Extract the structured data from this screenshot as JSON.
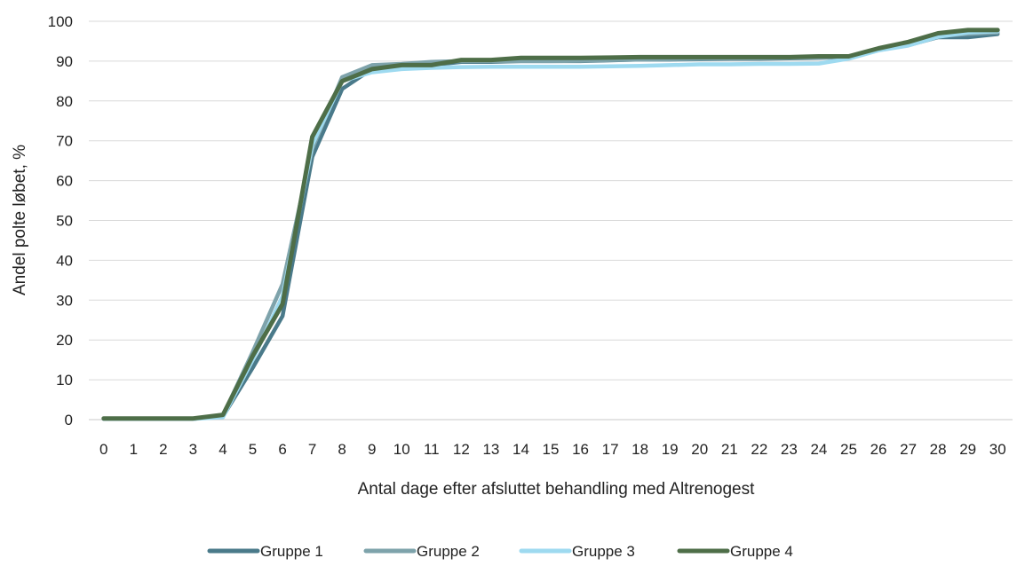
{
  "chart_data": {
    "type": "line",
    "title": "",
    "xlabel": "Antal dage efter afsluttet behandling med Altrenogest",
    "ylabel": "Andel polte løbet, %",
    "xlim": [
      0,
      30
    ],
    "ylim": [
      0,
      100
    ],
    "grid": true,
    "legend_position": "bottom",
    "x": [
      0,
      1,
      2,
      3,
      4,
      5,
      6,
      7,
      8,
      9,
      10,
      11,
      12,
      13,
      14,
      15,
      16,
      17,
      18,
      19,
      20,
      21,
      22,
      23,
      24,
      25,
      26,
      27,
      28,
      29,
      30
    ],
    "x_tick_labels": [
      "0",
      "1",
      "2",
      "3",
      "4",
      "5",
      "6",
      "7",
      "8",
      "9",
      "10",
      "11",
      "12",
      "13",
      "14",
      "15",
      "16",
      "17",
      "18",
      "19",
      "20",
      "21",
      "22",
      "23",
      "24",
      "25",
      "26",
      "27",
      "28",
      "29",
      "30"
    ],
    "y_ticks": [
      0,
      10,
      20,
      30,
      40,
      50,
      60,
      70,
      80,
      90,
      100
    ],
    "series": [
      {
        "name": "Gruppe 1",
        "color": "#4a7a8a",
        "values": [
          0.2,
          0.2,
          0.2,
          0.2,
          0.8,
          13,
          26,
          66,
          83,
          88,
          88.8,
          89,
          89.8,
          89.8,
          90,
          90,
          90,
          90.2,
          90.4,
          90.4,
          90.5,
          90.6,
          90.6,
          90.7,
          90.8,
          91,
          92.8,
          94,
          96,
          96,
          96.8
        ]
      },
      {
        "name": "Gruppe 2",
        "color": "#7ea3ab",
        "values": [
          0.2,
          0.2,
          0.2,
          0.2,
          1.0,
          17,
          34,
          68,
          86,
          89,
          89.3,
          89.8,
          90,
          90,
          90,
          90,
          90.1,
          90.3,
          90.4,
          90.5,
          90.6,
          90.7,
          90.7,
          90.8,
          90.9,
          91,
          92.8,
          94,
          96.3,
          96.8,
          97.2
        ]
      },
      {
        "name": "Gruppe 3",
        "color": "#9edaf0",
        "values": [
          0.2,
          0.2,
          0.2,
          0.2,
          0.6,
          15,
          31,
          69,
          85,
          87.2,
          88,
          88.3,
          88.5,
          88.6,
          88.6,
          88.6,
          88.6,
          88.7,
          88.8,
          89,
          89.2,
          89.2,
          89.3,
          89.3,
          89.4,
          90.6,
          92.7,
          93.9,
          96.1,
          97.2,
          97.5
        ]
      },
      {
        "name": "Gruppe 4",
        "color": "#4e6e48",
        "values": [
          0.3,
          0.3,
          0.3,
          0.3,
          1.2,
          16,
          29,
          71,
          85,
          88,
          89,
          89,
          90.3,
          90.3,
          90.8,
          90.8,
          90.8,
          90.9,
          91,
          91,
          91,
          91,
          91,
          91,
          91.2,
          91.2,
          93.2,
          94.8,
          97,
          97.8,
          97.8
        ]
      }
    ]
  }
}
